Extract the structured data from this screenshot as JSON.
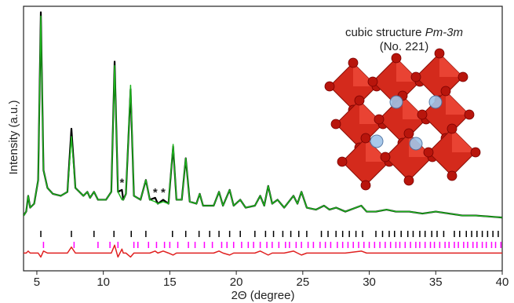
{
  "chart_data": {
    "type": "line",
    "title": "cubic structure",
    "space_group": "Pm-3m",
    "subtitle": "(No. 221)",
    "xlabel": "2Θ (degree)",
    "ylabel": "Intensity (a.u.)",
    "xlim": [
      4,
      40
    ],
    "xticks": [
      5,
      10,
      15,
      20,
      25,
      30,
      35,
      40
    ],
    "ylim": [
      -26,
      108
    ],
    "x": [
      4.0,
      4.2,
      4.35,
      4.5,
      4.8,
      5.1,
      5.3,
      5.5,
      5.8,
      6.2,
      6.8,
      7.3,
      7.6,
      7.9,
      8.5,
      8.8,
      9.0,
      9.3,
      9.6,
      10.2,
      10.6,
      10.85,
      11.1,
      11.4,
      11.5,
      11.7,
      12.05,
      12.3,
      12.8,
      13.2,
      13.5,
      13.9,
      14.1,
      14.5,
      14.9,
      15.25,
      15.5,
      15.9,
      16.2,
      16.5,
      17.0,
      17.25,
      17.5,
      18.3,
      18.7,
      19.0,
      19.5,
      19.8,
      20.3,
      20.7,
      21.4,
      21.8,
      22.1,
      22.4,
      22.7,
      23.1,
      23.6,
      24.3,
      24.6,
      24.9,
      25.3,
      26.0,
      26.6,
      27.0,
      27.5,
      28.2,
      29.4,
      29.8,
      30.5,
      31.3,
      32.0,
      33.0,
      34.0,
      35.0,
      36.0,
      37.0,
      38.0,
      39.0,
      40.0
    ],
    "series": [
      {
        "color": "#000000",
        "values": [
          2,
          4,
          12,
          6,
          8,
          20,
          105,
          25,
          16,
          13,
          12,
          14,
          46,
          16,
          12,
          14,
          11,
          14,
          10,
          10,
          14,
          80,
          14,
          15,
          10,
          13,
          66,
          12,
          10,
          20,
          10,
          11,
          8,
          10,
          8,
          37,
          10,
          10,
          31,
          9,
          8,
          13,
          7,
          7,
          14,
          7,
          15,
          7,
          10,
          6,
          7,
          12,
          7,
          17,
          8,
          10,
          6,
          12,
          8,
          14,
          6,
          5,
          7,
          5,
          6,
          4,
          7,
          4,
          4,
          5,
          4,
          4,
          3,
          4,
          3,
          2,
          2,
          1.5,
          1
        ]
      },
      {
        "color": "#1db31d",
        "values": [
          2,
          4,
          12,
          6,
          8,
          20,
          103,
          25,
          16,
          13,
          12,
          14,
          42,
          16,
          12,
          14,
          11,
          14,
          10,
          10,
          14,
          78,
          14,
          10,
          10,
          13,
          68,
          12,
          10,
          20,
          10,
          9,
          8,
          9,
          8,
          38,
          10,
          10,
          31,
          9,
          8,
          13,
          7,
          7,
          14,
          7,
          15,
          7,
          10,
          6,
          7,
          12,
          7,
          17,
          8,
          10,
          6,
          12,
          8,
          14,
          6,
          5,
          7,
          5,
          6,
          4,
          7,
          4,
          4,
          5,
          4,
          4,
          3,
          4,
          3,
          2,
          2,
          1.5,
          1
        ]
      },
      {
        "color": "#e02020",
        "values": [
          -17,
          -17,
          -16,
          -17,
          -17,
          -17,
          -19,
          -16,
          -17,
          -17,
          -17,
          -17,
          -14,
          -17,
          -17,
          -17,
          -17,
          -17,
          -17,
          -17,
          -17,
          -13,
          -19,
          -15,
          -17,
          -17,
          -19,
          -17,
          -17,
          -17,
          -17,
          -16,
          -17,
          -16,
          -17,
          -18,
          -17,
          -17,
          -17,
          -17,
          -17,
          -17,
          -17,
          -17,
          -16,
          -17,
          -18,
          -17,
          -17,
          -17,
          -17,
          -16,
          -17,
          -18,
          -17,
          -17,
          -17,
          -16,
          -17,
          -18,
          -17,
          -17,
          -17,
          -17,
          -17,
          -17,
          -16,
          -17,
          -17,
          -17,
          -17,
          -17,
          -17,
          -17,
          -17,
          -17,
          -17,
          -17,
          -17
        ]
      }
    ],
    "reflections": [
      {
        "color": "#000000",
        "positions": [
          5.3,
          7.6,
          9.3,
          10.8,
          12.1,
          13.2,
          15.2,
          16.2,
          17.2,
          18.0,
          18.7,
          19.5,
          20.3,
          21.4,
          22.2,
          22.8,
          23.5,
          24.1,
          24.7,
          25.3,
          26.4,
          26.9,
          27.5,
          28.0,
          28.5,
          29.0,
          29.5,
          30.5,
          31.0,
          31.5,
          31.9,
          32.4,
          32.9,
          33.3,
          33.8,
          34.2,
          34.7,
          35.1,
          35.6,
          36.4,
          36.8,
          37.3,
          37.7,
          38.1,
          38.5,
          38.9,
          39.3,
          39.7
        ]
      },
      {
        "color": "#ff00ff",
        "positions": [
          5.5,
          7.8,
          9.6,
          10.5,
          11.1,
          12.3,
          12.6,
          13.4,
          14.0,
          14.6,
          15.0,
          15.6,
          16.4,
          16.9,
          17.6,
          18.2,
          18.9,
          19.3,
          19.8,
          20.4,
          20.9,
          21.3,
          21.8,
          22.3,
          22.7,
          23.2,
          23.7,
          24.0,
          24.5,
          24.9,
          25.4,
          25.8,
          26.3,
          26.7,
          27.1,
          27.6,
          28.0,
          28.4,
          28.8,
          29.2,
          29.6,
          30.0,
          30.4,
          30.8,
          31.2,
          31.6,
          32.0,
          32.3,
          32.7,
          33.1,
          33.5,
          33.8,
          34.2,
          34.6,
          34.9,
          35.3,
          35.7,
          36.0,
          36.4,
          36.7,
          37.1,
          37.4,
          37.8,
          38.1,
          38.5,
          38.8,
          39.2,
          39.5,
          39.9
        ]
      }
    ],
    "annotations": [
      {
        "text": "*",
        "x": 11.4,
        "y": 20
      },
      {
        "text": "*",
        "x": 13.9,
        "y": 15
      },
      {
        "text": "*",
        "x": 14.5,
        "y": 15
      }
    ]
  }
}
